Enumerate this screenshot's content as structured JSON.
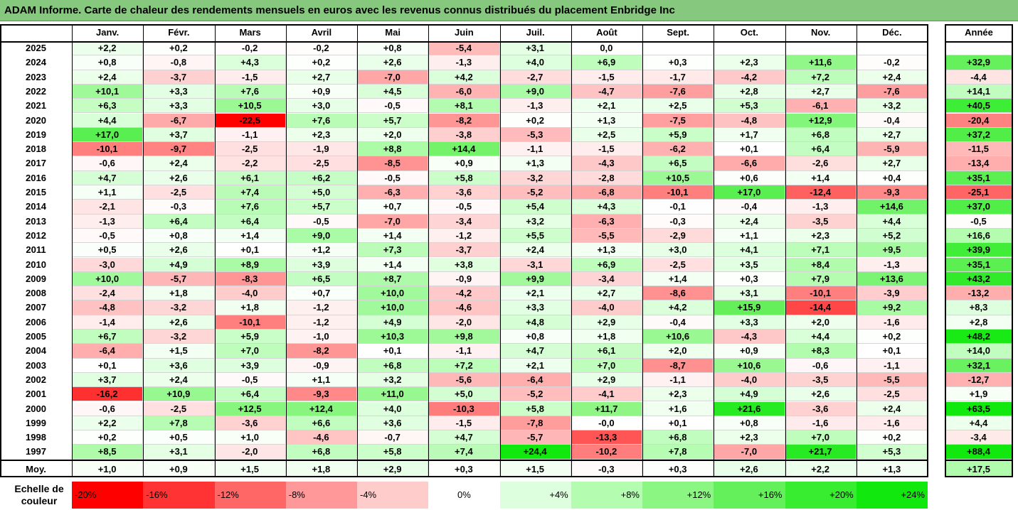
{
  "title": "ADAM Informe. Carte de chaleur des rendements mensuels en euros avec les revenus connus distribués du placement Enbridge Inc",
  "chart_data": {
    "type": "heatmap",
    "columns": [
      "Janv.",
      "Févr.",
      "Mars",
      "Avril",
      "Mai",
      "Juin",
      "Juil.",
      "Août",
      "Sept.",
      "Oct.",
      "Nov.",
      "Déc."
    ],
    "year_column": "Année",
    "avg_label": "Moy.",
    "rows": [
      {
        "year": "2025",
        "values": [
          "+2,2",
          "+0,2",
          "-0,2",
          "-0,2",
          "+0,8",
          "-5,4",
          "+3,1",
          "0,0",
          "",
          "",
          "",
          ""
        ],
        "annual": ""
      },
      {
        "year": "2024",
        "values": [
          "+0,8",
          "-0,8",
          "+4,3",
          "+0,2",
          "+2,6",
          "-1,3",
          "+4,0",
          "+6,9",
          "+0,3",
          "+2,3",
          "+11,6",
          "-0,2"
        ],
        "annual": "+32,9"
      },
      {
        "year": "2023",
        "values": [
          "+2,4",
          "-3,7",
          "-1,5",
          "+2,7",
          "-7,0",
          "+4,2",
          "-2,7",
          "-1,5",
          "-1,7",
          "-4,2",
          "+7,2",
          "+2,4"
        ],
        "annual": "-4,4"
      },
      {
        "year": "2022",
        "values": [
          "+10,1",
          "+3,3",
          "+7,6",
          "+0,9",
          "+4,5",
          "-6,0",
          "+9,0",
          "-4,7",
          "-7,6",
          "+2,8",
          "+2,7",
          "-7,6"
        ],
        "annual": "+14,1"
      },
      {
        "year": "2021",
        "values": [
          "+6,3",
          "+3,3",
          "+10,5",
          "+3,0",
          "-0,5",
          "+8,1",
          "-1,3",
          "+2,1",
          "+2,5",
          "+5,3",
          "-6,1",
          "+3,2"
        ],
        "annual": "+40,5"
      },
      {
        "year": "2020",
        "values": [
          "+4,4",
          "-6,7",
          "-22,5",
          "+7,6",
          "+5,7",
          "-8,2",
          "+0,2",
          "+1,3",
          "-7,5",
          "-4,8",
          "+12,9",
          "-0,4"
        ],
        "annual": "-20,4"
      },
      {
        "year": "2019",
        "values": [
          "+17,0",
          "+3,7",
          "-1,1",
          "+2,3",
          "+2,0",
          "-3,8",
          "-5,3",
          "+2,5",
          "+5,9",
          "+1,7",
          "+6,8",
          "+2,7"
        ],
        "annual": "+37,2"
      },
      {
        "year": "2018",
        "values": [
          "-10,1",
          "-9,7",
          "-2,5",
          "-1,9",
          "+8,8",
          "+14,4",
          "-1,1",
          "-1,5",
          "-6,2",
          "+0,1",
          "+6,4",
          "-5,9"
        ],
        "annual": "-11,5"
      },
      {
        "year": "2017",
        "values": [
          "-0,6",
          "+2,4",
          "-2,2",
          "-2,5",
          "-8,5",
          "+0,9",
          "+1,3",
          "-4,3",
          "+6,5",
          "-6,6",
          "-2,6",
          "+2,7"
        ],
        "annual": "-13,4"
      },
      {
        "year": "2016",
        "values": [
          "+4,7",
          "+2,6",
          "+6,1",
          "+6,2",
          "-0,5",
          "+5,8",
          "-3,2",
          "-2,8",
          "+10,5",
          "+0,6",
          "+1,4",
          "+0,4"
        ],
        "annual": "+35,1"
      },
      {
        "year": "2015",
        "values": [
          "+1,1",
          "-2,5",
          "+7,4",
          "+5,0",
          "-6,3",
          "-3,6",
          "-5,2",
          "-6,8",
          "-10,1",
          "+17,0",
          "-12,4",
          "-9,3"
        ],
        "annual": "-25,1"
      },
      {
        "year": "2014",
        "values": [
          "-2,1",
          "-0,3",
          "+7,6",
          "+5,7",
          "+0,7",
          "-0,5",
          "+5,4",
          "+4,3",
          "-0,1",
          "-0,4",
          "-1,3",
          "+14,6"
        ],
        "annual": "+37,0"
      },
      {
        "year": "2013",
        "values": [
          "-1,3",
          "+6,4",
          "+6,4",
          "-0,5",
          "-7,0",
          "-3,4",
          "+3,2",
          "-6,3",
          "-0,3",
          "+2,4",
          "-3,5",
          "+4,4"
        ],
        "annual": "-0,5"
      },
      {
        "year": "2012",
        "values": [
          "-0,5",
          "+0,8",
          "+1,4",
          "+9,0",
          "+1,4",
          "-1,2",
          "+5,5",
          "-5,5",
          "-2,9",
          "+1,1",
          "+2,3",
          "+5,2"
        ],
        "annual": "+16,6"
      },
      {
        "year": "2011",
        "values": [
          "+0,5",
          "+2,6",
          "+0,1",
          "+1,2",
          "+7,3",
          "-3,7",
          "+2,4",
          "+1,3",
          "+3,0",
          "+4,1",
          "+7,1",
          "+9,5"
        ],
        "annual": "+39,9"
      },
      {
        "year": "2010",
        "values": [
          "-3,0",
          "+4,9",
          "+8,9",
          "+3,9",
          "+1,4",
          "+3,8",
          "-3,1",
          "+6,9",
          "-2,5",
          "+3,5",
          "+8,4",
          "-1,3"
        ],
        "annual": "+35,1"
      },
      {
        "year": "2009",
        "values": [
          "+10,0",
          "-5,7",
          "-8,3",
          "+6,5",
          "+8,7",
          "-0,9",
          "+9,9",
          "-3,4",
          "+1,4",
          "+0,3",
          "+7,9",
          "+13,6"
        ],
        "annual": "+43,2"
      },
      {
        "year": "2008",
        "values": [
          "-2,4",
          "+1,8",
          "-4,0",
          "+0,7",
          "+10,0",
          "-4,2",
          "+2,1",
          "+2,7",
          "-8,6",
          "+3,1",
          "-10,1",
          "-3,9"
        ],
        "annual": "-13,2"
      },
      {
        "year": "2007",
        "values": [
          "-4,8",
          "-3,2",
          "+1,8",
          "-1,2",
          "+10,0",
          "-4,6",
          "+3,3",
          "-4,0",
          "+4,2",
          "+15,9",
          "-14,4",
          "+9,2"
        ],
        "annual": "+8,3"
      },
      {
        "year": "2006",
        "values": [
          "-1,4",
          "+2,6",
          "-10,1",
          "-1,2",
          "+4,9",
          "-2,0",
          "+4,8",
          "+2,9",
          "-0,4",
          "+3,3",
          "+2,0",
          "-1,6"
        ],
        "annual": "+2,8"
      },
      {
        "year": "2005",
        "values": [
          "+6,7",
          "-3,2",
          "+5,9",
          "-1,0",
          "+10,3",
          "+9,8",
          "+0,8",
          "+1,8",
          "+10,6",
          "-4,3",
          "+4,4",
          "+0,2"
        ],
        "annual": "+48,2"
      },
      {
        "year": "2004",
        "values": [
          "-6,4",
          "+1,5",
          "+7,0",
          "-8,2",
          "+0,1",
          "-1,1",
          "+4,7",
          "+6,1",
          "+2,0",
          "+0,9",
          "+8,3",
          "+0,1"
        ],
        "annual": "+14,0"
      },
      {
        "year": "2003",
        "values": [
          "+0,1",
          "+3,6",
          "+3,9",
          "-0,9",
          "+6,8",
          "+7,2",
          "+2,1",
          "+7,0",
          "-8,7",
          "+10,6",
          "-0,6",
          "-1,1"
        ],
        "annual": "+32,1"
      },
      {
        "year": "2002",
        "values": [
          "+3,7",
          "+2,4",
          "-0,5",
          "+1,1",
          "+3,2",
          "-5,6",
          "-6,4",
          "+2,9",
          "-1,1",
          "-4,0",
          "-3,5",
          "-5,5"
        ],
        "annual": "-12,7"
      },
      {
        "year": "2001",
        "values": [
          "-16,2",
          "+10,9",
          "+6,4",
          "-9,3",
          "+11,0",
          "+5,0",
          "-5,2",
          "-4,1",
          "+2,3",
          "+4,9",
          "+2,6",
          "-2,5"
        ],
        "annual": "+1,9"
      },
      {
        "year": "2000",
        "values": [
          "-0,6",
          "-2,5",
          "+12,5",
          "+12,4",
          "+4,0",
          "-10,3",
          "+5,8",
          "+11,7",
          "+1,6",
          "+21,6",
          "-3,6",
          "+2,4"
        ],
        "annual": "+63,5"
      },
      {
        "year": "1999",
        "values": [
          "+2,2",
          "+7,8",
          "-3,6",
          "+6,6",
          "+3,6",
          "-1,5",
          "-7,8",
          "-0,0",
          "+0,1",
          "+0,8",
          "-1,6",
          "-1,6"
        ],
        "annual": "+4,4"
      },
      {
        "year": "1998",
        "values": [
          "+0,2",
          "+0,5",
          "+1,0",
          "-4,6",
          "-0,7",
          "+4,7",
          "-5,7",
          "-13,3",
          "+6,8",
          "+2,3",
          "+7,0",
          "+0,2"
        ],
        "annual": "-3,4"
      },
      {
        "year": "1997",
        "values": [
          "+8,5",
          "+3,1",
          "-2,0",
          "+6,8",
          "+5,8",
          "+7,4",
          "+24,4",
          "-10,2",
          "+7,8",
          "-7,0",
          "+21,7",
          "+5,3"
        ],
        "annual": "+88,4"
      }
    ],
    "averages": {
      "values": [
        "+1,0",
        "+0,9",
        "+1,5",
        "+1,8",
        "+2,9",
        "+0,3",
        "+1,5",
        "-0,3",
        "+0,3",
        "+2,6",
        "+2,2",
        "+1,3"
      ],
      "annual": "+17,5"
    },
    "color_scale": {
      "label": "Echelle de couleur",
      "stops": [
        {
          "label": "-20%",
          "value": -20,
          "color": "#ff0000"
        },
        {
          "label": "-16%",
          "value": -16,
          "color": "#ff3333"
        },
        {
          "label": "-12%",
          "value": -12,
          "color": "#ff6666"
        },
        {
          "label": "-8%",
          "value": -8,
          "color": "#ff9999"
        },
        {
          "label": "-4%",
          "value": -4,
          "color": "#ffcccc"
        },
        {
          "label": "0%",
          "value": 0,
          "color": "#ffffff"
        },
        {
          "label": "+4%",
          "value": 4,
          "color": "#ddffdd"
        },
        {
          "label": "+8%",
          "value": 8,
          "color": "#b4fcb0"
        },
        {
          "label": "+12%",
          "value": 12,
          "color": "#8cf683"
        },
        {
          "label": "+16%",
          "value": 16,
          "color": "#64f05a"
        },
        {
          "label": "+20%",
          "value": 20,
          "color": "#38ec30"
        },
        {
          "label": "+24%",
          "value": 24,
          "color": "#11e80e"
        }
      ]
    },
    "annual_scale": {
      "min": -40,
      "max": 50
    }
  }
}
